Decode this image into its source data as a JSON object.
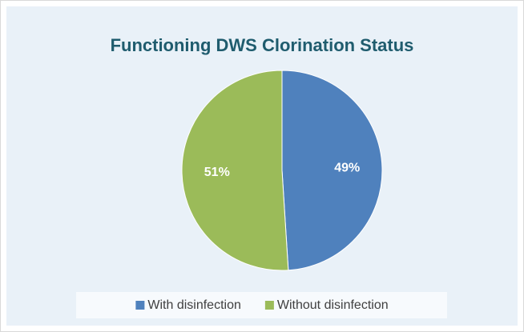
{
  "chart_data": {
    "type": "pie",
    "title": "Functioning DWS Clorination Status",
    "categories": [
      "With disinfection",
      "Without disinfection"
    ],
    "values": [
      49,
      51
    ],
    "value_labels": [
      "49%",
      "51%"
    ],
    "colors": [
      "#4f81bd",
      "#9bbb59"
    ],
    "legend": "bottom"
  }
}
